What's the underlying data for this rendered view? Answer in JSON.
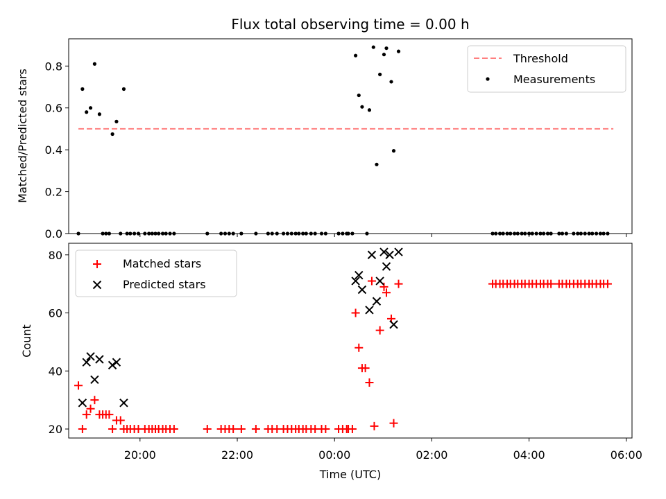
{
  "title": "Flux total observing time = 0.00 h",
  "xlabel": "Time (UTC)",
  "x_ticks": [
    "20:00",
    "22:00",
    "00:00",
    "02:00",
    "04:00",
    "06:00"
  ],
  "colors": {
    "threshold": "#ff7f7f",
    "measurements": "#000000",
    "matched": "#ff0000",
    "predicted": "#000000"
  },
  "chart_data": [
    {
      "type": "scatter",
      "ylabel": "Matched/Predicted stars",
      "ylim": [
        0.0,
        0.93
      ],
      "y_ticks": [
        "0.0",
        "0.2",
        "0.4",
        "0.6",
        "0.8"
      ],
      "xlim": [
        "18:32",
        "06:07"
      ],
      "legend_position": "top-right",
      "threshold": {
        "name": "Threshold",
        "value": 0.5,
        "x_range": [
          "18:44",
          "05:44"
        ]
      },
      "series": [
        {
          "name": "Measurements",
          "points": [
            [
              "18:44",
              0.0
            ],
            [
              "18:49",
              0.69
            ],
            [
              "18:54",
              0.58
            ],
            [
              "18:59",
              0.6
            ],
            [
              "19:04",
              0.81
            ],
            [
              "19:10",
              0.57
            ],
            [
              "19:14",
              0.0
            ],
            [
              "19:18",
              0.0
            ],
            [
              "19:22",
              0.0
            ],
            [
              "19:26",
              0.475
            ],
            [
              "19:31",
              0.535
            ],
            [
              "19:36",
              0.0
            ],
            [
              "19:40",
              0.69
            ],
            [
              "19:44",
              0.0
            ],
            [
              "19:48",
              0.0
            ],
            [
              "19:53",
              0.0
            ],
            [
              "19:58",
              0.0
            ],
            [
              "20:06",
              0.0
            ],
            [
              "20:11",
              0.0
            ],
            [
              "20:15",
              0.0
            ],
            [
              "20:19",
              0.0
            ],
            [
              "20:23",
              0.0
            ],
            [
              "20:28",
              0.0
            ],
            [
              "20:32",
              0.0
            ],
            [
              "20:37",
              0.0
            ],
            [
              "20:42",
              0.0
            ],
            [
              "21:23",
              0.0
            ],
            [
              "21:40",
              0.0
            ],
            [
              "21:45",
              0.0
            ],
            [
              "21:50",
              0.0
            ],
            [
              "21:55",
              0.0
            ],
            [
              "22:05",
              0.0
            ],
            [
              "22:23",
              0.0
            ],
            [
              "22:38",
              0.0
            ],
            [
              "22:43",
              0.0
            ],
            [
              "22:49",
              0.0
            ],
            [
              "22:57",
              0.0
            ],
            [
              "23:02",
              0.0
            ],
            [
              "23:07",
              0.0
            ],
            [
              "23:12",
              0.0
            ],
            [
              "23:16",
              0.0
            ],
            [
              "23:21",
              0.0
            ],
            [
              "23:25",
              0.0
            ],
            [
              "23:31",
              0.0
            ],
            [
              "23:36",
              0.0
            ],
            [
              "23:44",
              0.0
            ],
            [
              "23:49",
              0.0
            ],
            [
              "00:05",
              0.0
            ],
            [
              "00:10",
              0.0
            ],
            [
              "00:15",
              0.0
            ],
            [
              "00:17",
              0.0
            ],
            [
              "00:22",
              0.0
            ],
            [
              "00:40",
              0.0
            ],
            [
              "00:26",
              0.85
            ],
            [
              "00:30",
              0.66
            ],
            [
              "00:34",
              0.605
            ],
            [
              "00:43",
              0.59
            ],
            [
              "00:48",
              0.89
            ],
            [
              "00:52",
              0.33
            ],
            [
              "00:56",
              0.76
            ],
            [
              "01:01",
              0.855
            ],
            [
              "01:04",
              0.885
            ],
            [
              "01:10",
              0.725
            ],
            [
              "01:13",
              0.395
            ],
            [
              "01:19",
              0.87
            ],
            [
              "03:15",
              0.0
            ],
            [
              "03:19",
              0.0
            ],
            [
              "03:24",
              0.0
            ],
            [
              "03:28",
              0.0
            ],
            [
              "03:33",
              0.0
            ],
            [
              "03:37",
              0.0
            ],
            [
              "03:42",
              0.0
            ],
            [
              "03:46",
              0.0
            ],
            [
              "03:51",
              0.0
            ],
            [
              "03:55",
              0.0
            ],
            [
              "04:00",
              0.0
            ],
            [
              "04:04",
              0.0
            ],
            [
              "04:09",
              0.0
            ],
            [
              "04:14",
              0.0
            ],
            [
              "04:18",
              0.0
            ],
            [
              "04:23",
              0.0
            ],
            [
              "04:27",
              0.0
            ],
            [
              "04:37",
              0.0
            ],
            [
              "04:41",
              0.0
            ],
            [
              "04:46",
              0.0
            ],
            [
              "04:55",
              0.0
            ],
            [
              "05:00",
              0.0
            ],
            [
              "05:04",
              0.0
            ],
            [
              "05:09",
              0.0
            ],
            [
              "05:14",
              0.0
            ],
            [
              "05:18",
              0.0
            ],
            [
              "05:23",
              0.0
            ],
            [
              "05:28",
              0.0
            ],
            [
              "05:32",
              0.0
            ],
            [
              "05:37",
              0.0
            ]
          ]
        }
      ]
    },
    {
      "type": "scatter",
      "ylabel": "Count",
      "ylim": [
        16.9,
        84.0
      ],
      "y_ticks": [
        "20",
        "40",
        "60",
        "80"
      ],
      "xlim": [
        "18:32",
        "06:07"
      ],
      "legend_position": "top-left",
      "series": [
        {
          "name": "Matched stars",
          "points": [
            [
              "18:44",
              35
            ],
            [
              "18:49",
              20
            ],
            [
              "18:54",
              25
            ],
            [
              "18:59",
              27
            ],
            [
              "19:04",
              30
            ],
            [
              "19:10",
              25
            ],
            [
              "19:14",
              25
            ],
            [
              "19:18",
              25
            ],
            [
              "19:22",
              25
            ],
            [
              "19:26",
              20
            ],
            [
              "19:31",
              23
            ],
            [
              "19:36",
              23
            ],
            [
              "19:40",
              20
            ],
            [
              "19:44",
              20
            ],
            [
              "19:48",
              20
            ],
            [
              "19:53",
              20
            ],
            [
              "19:58",
              20
            ],
            [
              "20:06",
              20
            ],
            [
              "20:11",
              20
            ],
            [
              "20:15",
              20
            ],
            [
              "20:19",
              20
            ],
            [
              "20:23",
              20
            ],
            [
              "20:28",
              20
            ],
            [
              "20:32",
              20
            ],
            [
              "20:37",
              20
            ],
            [
              "20:42",
              20
            ],
            [
              "21:23",
              20
            ],
            [
              "21:40",
              20
            ],
            [
              "21:45",
              20
            ],
            [
              "21:50",
              20
            ],
            [
              "21:55",
              20
            ],
            [
              "22:05",
              20
            ],
            [
              "22:23",
              20
            ],
            [
              "22:38",
              20
            ],
            [
              "22:43",
              20
            ],
            [
              "22:49",
              20
            ],
            [
              "22:57",
              20
            ],
            [
              "23:02",
              20
            ],
            [
              "23:07",
              20
            ],
            [
              "23:12",
              20
            ],
            [
              "23:16",
              20
            ],
            [
              "23:21",
              20
            ],
            [
              "23:25",
              20
            ],
            [
              "23:31",
              20
            ],
            [
              "23:36",
              20
            ],
            [
              "23:44",
              20
            ],
            [
              "23:49",
              20
            ],
            [
              "00:05",
              20
            ],
            [
              "00:10",
              20
            ],
            [
              "00:15",
              20
            ],
            [
              "00:17",
              20
            ],
            [
              "00:22",
              20
            ],
            [
              "00:26",
              60
            ],
            [
              "00:30",
              48
            ],
            [
              "00:34",
              41
            ],
            [
              "00:38",
              41
            ],
            [
              "00:43",
              36
            ],
            [
              "00:46",
              71
            ],
            [
              "00:49",
              21
            ],
            [
              "00:56",
              54
            ],
            [
              "01:01",
              69
            ],
            [
              "01:04",
              67
            ],
            [
              "01:10",
              58
            ],
            [
              "01:13",
              22
            ],
            [
              "01:19",
              70
            ],
            [
              "03:15",
              70
            ],
            [
              "03:19",
              70
            ],
            [
              "03:24",
              70
            ],
            [
              "03:28",
              70
            ],
            [
              "03:33",
              70
            ],
            [
              "03:37",
              70
            ],
            [
              "03:42",
              70
            ],
            [
              "03:46",
              70
            ],
            [
              "03:51",
              70
            ],
            [
              "03:55",
              70
            ],
            [
              "04:00",
              70
            ],
            [
              "04:04",
              70
            ],
            [
              "04:09",
              70
            ],
            [
              "04:14",
              70
            ],
            [
              "04:18",
              70
            ],
            [
              "04:23",
              70
            ],
            [
              "04:27",
              70
            ],
            [
              "04:37",
              70
            ],
            [
              "04:41",
              70
            ],
            [
              "04:46",
              70
            ],
            [
              "04:50",
              70
            ],
            [
              "04:55",
              70
            ],
            [
              "05:00",
              70
            ],
            [
              "05:04",
              70
            ],
            [
              "05:09",
              70
            ],
            [
              "05:14",
              70
            ],
            [
              "05:18",
              70
            ],
            [
              "05:23",
              70
            ],
            [
              "05:28",
              70
            ],
            [
              "05:32",
              70
            ],
            [
              "05:37",
              70
            ]
          ]
        },
        {
          "name": "Predicted stars",
          "points": [
            [
              "18:49",
              29
            ],
            [
              "18:54",
              43
            ],
            [
              "18:59",
              45
            ],
            [
              "19:04",
              37
            ],
            [
              "19:10",
              44
            ],
            [
              "19:26",
              42
            ],
            [
              "19:31",
              43
            ],
            [
              "19:40",
              29
            ],
            [
              "00:26",
              71
            ],
            [
              "00:30",
              73
            ],
            [
              "00:34",
              68
            ],
            [
              "00:43",
              61
            ],
            [
              "00:46",
              80
            ],
            [
              "00:52",
              64
            ],
            [
              "00:56",
              71
            ],
            [
              "01:01",
              81
            ],
            [
              "01:04",
              76
            ],
            [
              "01:08",
              80
            ],
            [
              "01:13",
              56
            ],
            [
              "01:19",
              81
            ]
          ]
        }
      ]
    }
  ]
}
